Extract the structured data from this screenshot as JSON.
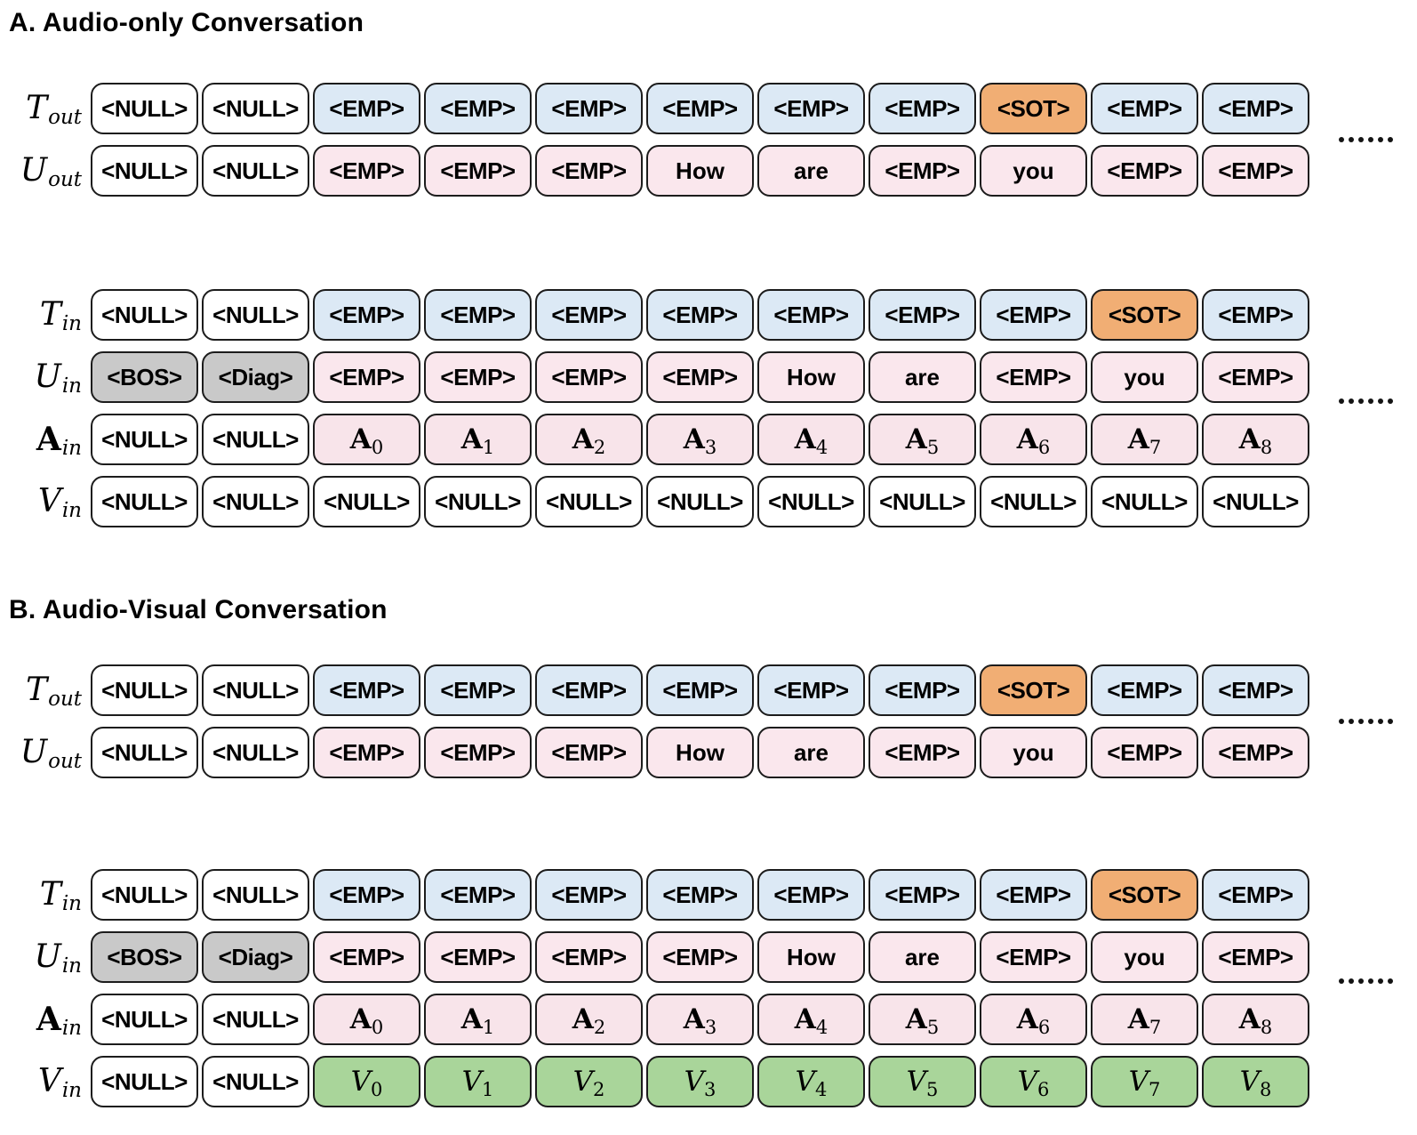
{
  "colors": {
    "emp_text": "#dce9f5",
    "emp_audio_user": "#fae7ed",
    "sot": "#f1ae74",
    "system": "#c9c9c9",
    "audio": "#f8e4ea",
    "video": "#a9d59a",
    "null_cell": "#ffffff",
    "border": "#1c1c1c"
  },
  "sections": [
    {
      "id": "A",
      "title": "A. Audio-only Conversation",
      "blocks": [
        {
          "ellipsis": "......",
          "rows": [
            {
              "label": {
                "base": "T",
                "sub": "out"
              },
              "cells": [
                {
                  "t": "<NULL>",
                  "k": "null"
                },
                {
                  "t": "<NULL>",
                  "k": "null"
                },
                {
                  "t": "<EMP>",
                  "k": "empT"
                },
                {
                  "t": "<EMP>",
                  "k": "empT"
                },
                {
                  "t": "<EMP>",
                  "k": "empT"
                },
                {
                  "t": "<EMP>",
                  "k": "empT"
                },
                {
                  "t": "<EMP>",
                  "k": "empT"
                },
                {
                  "t": "<EMP>",
                  "k": "empT"
                },
                {
                  "t": "<SOT>",
                  "k": "sot"
                },
                {
                  "t": "<EMP>",
                  "k": "empT"
                },
                {
                  "t": "<EMP>",
                  "k": "empT"
                }
              ]
            },
            {
              "label": {
                "base": "U",
                "sub": "out"
              },
              "cells": [
                {
                  "t": "<NULL>",
                  "k": "null"
                },
                {
                  "t": "<NULL>",
                  "k": "null"
                },
                {
                  "t": "<EMP>",
                  "k": "empU"
                },
                {
                  "t": "<EMP>",
                  "k": "empU"
                },
                {
                  "t": "<EMP>",
                  "k": "empU"
                },
                {
                  "t": "How",
                  "k": "word"
                },
                {
                  "t": "are",
                  "k": "word"
                },
                {
                  "t": "<EMP>",
                  "k": "empU"
                },
                {
                  "t": "you",
                  "k": "word"
                },
                {
                  "t": "<EMP>",
                  "k": "empU"
                },
                {
                  "t": "<EMP>",
                  "k": "empU"
                }
              ]
            }
          ]
        },
        {
          "ellipsis": "......",
          "rows": [
            {
              "label": {
                "base": "T",
                "sub": "in"
              },
              "cells": [
                {
                  "t": "<NULL>",
                  "k": "null"
                },
                {
                  "t": "<NULL>",
                  "k": "null"
                },
                {
                  "t": "<EMP>",
                  "k": "empT"
                },
                {
                  "t": "<EMP>",
                  "k": "empT"
                },
                {
                  "t": "<EMP>",
                  "k": "empT"
                },
                {
                  "t": "<EMP>",
                  "k": "empT"
                },
                {
                  "t": "<EMP>",
                  "k": "empT"
                },
                {
                  "t": "<EMP>",
                  "k": "empT"
                },
                {
                  "t": "<EMP>",
                  "k": "empT"
                },
                {
                  "t": "<SOT>",
                  "k": "sot"
                },
                {
                  "t": "<EMP>",
                  "k": "empT"
                }
              ]
            },
            {
              "label": {
                "base": "U",
                "sub": "in"
              },
              "cells": [
                {
                  "t": "<BOS>",
                  "k": "sys"
                },
                {
                  "t": "<Diag>",
                  "k": "sys"
                },
                {
                  "t": "<EMP>",
                  "k": "empU"
                },
                {
                  "t": "<EMP>",
                  "k": "empU"
                },
                {
                  "t": "<EMP>",
                  "k": "empU"
                },
                {
                  "t": "<EMP>",
                  "k": "empU"
                },
                {
                  "t": "How",
                  "k": "word"
                },
                {
                  "t": "are",
                  "k": "word"
                },
                {
                  "t": "<EMP>",
                  "k": "empU"
                },
                {
                  "t": "you",
                  "k": "word"
                },
                {
                  "t": "<EMP>",
                  "k": "empU"
                }
              ]
            },
            {
              "label": {
                "base": "A",
                "sub": "in",
                "bold": true
              },
              "cells": [
                {
                  "t": "<NULL>",
                  "k": "null"
                },
                {
                  "t": "<NULL>",
                  "k": "null"
                },
                {
                  "base": "A",
                  "sub": "0",
                  "k": "audio"
                },
                {
                  "base": "A",
                  "sub": "1",
                  "k": "audio"
                },
                {
                  "base": "A",
                  "sub": "2",
                  "k": "audio"
                },
                {
                  "base": "A",
                  "sub": "3",
                  "k": "audio"
                },
                {
                  "base": "A",
                  "sub": "4",
                  "k": "audio"
                },
                {
                  "base": "A",
                  "sub": "5",
                  "k": "audio"
                },
                {
                  "base": "A",
                  "sub": "6",
                  "k": "audio"
                },
                {
                  "base": "A",
                  "sub": "7",
                  "k": "audio"
                },
                {
                  "base": "A",
                  "sub": "8",
                  "k": "audio"
                }
              ]
            },
            {
              "label": {
                "base": "V",
                "sub": "in"
              },
              "cells": [
                {
                  "t": "<NULL>",
                  "k": "null"
                },
                {
                  "t": "<NULL>",
                  "k": "null"
                },
                {
                  "t": "<NULL>",
                  "k": "null"
                },
                {
                  "t": "<NULL>",
                  "k": "null"
                },
                {
                  "t": "<NULL>",
                  "k": "null"
                },
                {
                  "t": "<NULL>",
                  "k": "null"
                },
                {
                  "t": "<NULL>",
                  "k": "null"
                },
                {
                  "t": "<NULL>",
                  "k": "null"
                },
                {
                  "t": "<NULL>",
                  "k": "null"
                },
                {
                  "t": "<NULL>",
                  "k": "null"
                },
                {
                  "t": "<NULL>",
                  "k": "null"
                }
              ]
            }
          ]
        }
      ]
    },
    {
      "id": "B",
      "title": "B. Audio-Visual Conversation",
      "blocks": [
        {
          "ellipsis": "......",
          "rows": [
            {
              "label": {
                "base": "T",
                "sub": "out"
              },
              "cells": [
                {
                  "t": "<NULL>",
                  "k": "null"
                },
                {
                  "t": "<NULL>",
                  "k": "null"
                },
                {
                  "t": "<EMP>",
                  "k": "empT"
                },
                {
                  "t": "<EMP>",
                  "k": "empT"
                },
                {
                  "t": "<EMP>",
                  "k": "empT"
                },
                {
                  "t": "<EMP>",
                  "k": "empT"
                },
                {
                  "t": "<EMP>",
                  "k": "empT"
                },
                {
                  "t": "<EMP>",
                  "k": "empT"
                },
                {
                  "t": "<SOT>",
                  "k": "sot"
                },
                {
                  "t": "<EMP>",
                  "k": "empT"
                },
                {
                  "t": "<EMP>",
                  "k": "empT"
                }
              ]
            },
            {
              "label": {
                "base": "U",
                "sub": "out"
              },
              "cells": [
                {
                  "t": "<NULL>",
                  "k": "null"
                },
                {
                  "t": "<NULL>",
                  "k": "null"
                },
                {
                  "t": "<EMP>",
                  "k": "empU"
                },
                {
                  "t": "<EMP>",
                  "k": "empU"
                },
                {
                  "t": "<EMP>",
                  "k": "empU"
                },
                {
                  "t": "How",
                  "k": "word"
                },
                {
                  "t": "are",
                  "k": "word"
                },
                {
                  "t": "<EMP>",
                  "k": "empU"
                },
                {
                  "t": "you",
                  "k": "word"
                },
                {
                  "t": "<EMP>",
                  "k": "empU"
                },
                {
                  "t": "<EMP>",
                  "k": "empU"
                }
              ]
            }
          ]
        },
        {
          "ellipsis": "......",
          "rows": [
            {
              "label": {
                "base": "T",
                "sub": "in"
              },
              "cells": [
                {
                  "t": "<NULL>",
                  "k": "null"
                },
                {
                  "t": "<NULL>",
                  "k": "null"
                },
                {
                  "t": "<EMP>",
                  "k": "empT"
                },
                {
                  "t": "<EMP>",
                  "k": "empT"
                },
                {
                  "t": "<EMP>",
                  "k": "empT"
                },
                {
                  "t": "<EMP>",
                  "k": "empT"
                },
                {
                  "t": "<EMP>",
                  "k": "empT"
                },
                {
                  "t": "<EMP>",
                  "k": "empT"
                },
                {
                  "t": "<EMP>",
                  "k": "empT"
                },
                {
                  "t": "<SOT>",
                  "k": "sot"
                },
                {
                  "t": "<EMP>",
                  "k": "empT"
                }
              ]
            },
            {
              "label": {
                "base": "U",
                "sub": "in"
              },
              "cells": [
                {
                  "t": "<BOS>",
                  "k": "sys"
                },
                {
                  "t": "<Diag>",
                  "k": "sys"
                },
                {
                  "t": "<EMP>",
                  "k": "empU"
                },
                {
                  "t": "<EMP>",
                  "k": "empU"
                },
                {
                  "t": "<EMP>",
                  "k": "empU"
                },
                {
                  "t": "<EMP>",
                  "k": "empU"
                },
                {
                  "t": "How",
                  "k": "word"
                },
                {
                  "t": "are",
                  "k": "word"
                },
                {
                  "t": "<EMP>",
                  "k": "empU"
                },
                {
                  "t": "you",
                  "k": "word"
                },
                {
                  "t": "<EMP>",
                  "k": "empU"
                }
              ]
            },
            {
              "label": {
                "base": "A",
                "sub": "in",
                "bold": true
              },
              "cells": [
                {
                  "t": "<NULL>",
                  "k": "null"
                },
                {
                  "t": "<NULL>",
                  "k": "null"
                },
                {
                  "base": "A",
                  "sub": "0",
                  "k": "audio"
                },
                {
                  "base": "A",
                  "sub": "1",
                  "k": "audio"
                },
                {
                  "base": "A",
                  "sub": "2",
                  "k": "audio"
                },
                {
                  "base": "A",
                  "sub": "3",
                  "k": "audio"
                },
                {
                  "base": "A",
                  "sub": "4",
                  "k": "audio"
                },
                {
                  "base": "A",
                  "sub": "5",
                  "k": "audio"
                },
                {
                  "base": "A",
                  "sub": "6",
                  "k": "audio"
                },
                {
                  "base": "A",
                  "sub": "7",
                  "k": "audio"
                },
                {
                  "base": "A",
                  "sub": "8",
                  "k": "audio"
                }
              ]
            },
            {
              "label": {
                "base": "V",
                "sub": "in"
              },
              "cells": [
                {
                  "t": "<NULL>",
                  "k": "null"
                },
                {
                  "t": "<NULL>",
                  "k": "null"
                },
                {
                  "base": "V",
                  "sub": "0",
                  "k": "video"
                },
                {
                  "base": "V",
                  "sub": "1",
                  "k": "video"
                },
                {
                  "base": "V",
                  "sub": "2",
                  "k": "video"
                },
                {
                  "base": "V",
                  "sub": "3",
                  "k": "video"
                },
                {
                  "base": "V",
                  "sub": "4",
                  "k": "video"
                },
                {
                  "base": "V",
                  "sub": "5",
                  "k": "video"
                },
                {
                  "base": "V",
                  "sub": "6",
                  "k": "video"
                },
                {
                  "base": "V",
                  "sub": "7",
                  "k": "video"
                },
                {
                  "base": "V",
                  "sub": "8",
                  "k": "video"
                }
              ]
            }
          ]
        }
      ]
    }
  ]
}
